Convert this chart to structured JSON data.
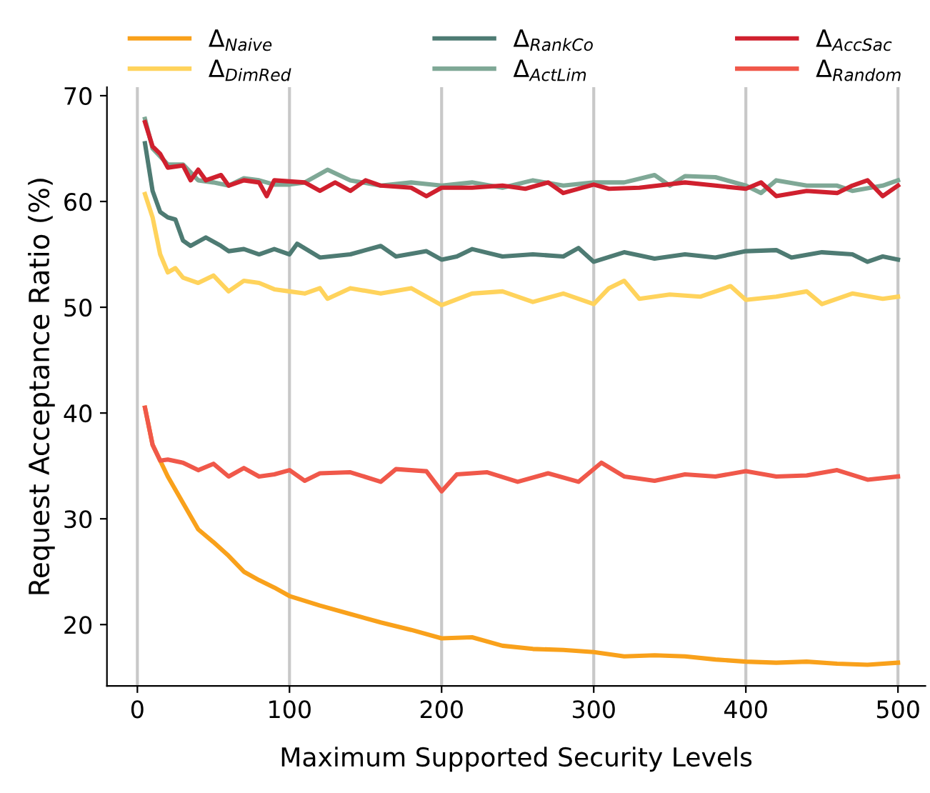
{
  "chart_data": {
    "type": "line",
    "xlabel": "Maximum Supported Security Levels",
    "ylabel": "Request Acceptance Ratio (%)",
    "xlim": [
      -20,
      518
    ],
    "ylim": [
      14.2,
      70.8
    ],
    "xticks": [
      0,
      100,
      200,
      300,
      400,
      500
    ],
    "yticks": [
      20,
      30,
      40,
      50,
      60,
      70
    ],
    "grid": "x",
    "legend": "top",
    "marker": "none",
    "line_style": "solid",
    "series": [
      {
        "name": "Δ$_{Naive}$",
        "color": "#f9a11b",
        "x": [
          5,
          10,
          20,
          30,
          40,
          50,
          60,
          70,
          80,
          90,
          100,
          120,
          140,
          160,
          180,
          200,
          220,
          240,
          260,
          280,
          300,
          320,
          340,
          360,
          380,
          400,
          420,
          440,
          460,
          480,
          500
        ],
        "values": [
          40.5,
          37,
          34,
          31.5,
          29,
          27.8,
          26.5,
          25,
          24.2,
          23.5,
          22.7,
          21.8,
          21,
          20.2,
          19.5,
          18.7,
          18.8,
          18,
          17.7,
          17.6,
          17.4,
          17,
          17.1,
          17,
          16.7,
          16.5,
          16.4,
          16.5,
          16.3,
          16.2,
          16.4
        ]
      },
      {
        "name": "Δ$_{DimRed}$",
        "color": "#ffd35c",
        "x": [
          5,
          10,
          15,
          20,
          25,
          30,
          40,
          50,
          60,
          70,
          80,
          90,
          100,
          110,
          120,
          125,
          140,
          160,
          180,
          200,
          220,
          240,
          260,
          280,
          300,
          310,
          320,
          330,
          350,
          370,
          390,
          400,
          420,
          440,
          450,
          470,
          490,
          500
        ],
        "values": [
          60.7,
          58.5,
          55,
          53.3,
          53.7,
          52.8,
          52.3,
          53,
          51.5,
          52.5,
          52.3,
          51.7,
          51.5,
          51.3,
          51.8,
          50.8,
          51.8,
          51.3,
          51.8,
          50.2,
          51.3,
          51.5,
          50.5,
          51.3,
          50.3,
          51.8,
          52.5,
          50.8,
          51.2,
          51,
          52,
          50.7,
          51,
          51.5,
          50.3,
          51.3,
          50.8,
          51
        ]
      },
      {
        "name": "Δ$_{RankCo}$",
        "color": "#4e7b73",
        "x": [
          5,
          10,
          15,
          20,
          25,
          30,
          35,
          45,
          55,
          60,
          70,
          80,
          90,
          100,
          105,
          120,
          140,
          160,
          170,
          190,
          200,
          210,
          220,
          240,
          260,
          280,
          290,
          300,
          320,
          340,
          360,
          380,
          400,
          420,
          430,
          450,
          470,
          480,
          490,
          500
        ],
        "values": [
          65.5,
          61,
          59,
          58.5,
          58.3,
          56.3,
          55.8,
          56.6,
          55.8,
          55.3,
          55.5,
          55,
          55.5,
          55,
          56,
          54.7,
          55,
          55.8,
          54.8,
          55.3,
          54.5,
          54.8,
          55.5,
          54.8,
          55,
          54.8,
          55.6,
          54.3,
          55.2,
          54.6,
          55,
          54.7,
          55.3,
          55.4,
          54.7,
          55.2,
          55,
          54.3,
          54.8,
          54.5
        ]
      },
      {
        "name": "Δ$_{ActLim}$",
        "color": "#7fa896",
        "x": [
          5,
          10,
          20,
          30,
          40,
          50,
          60,
          70,
          80,
          90,
          100,
          110,
          125,
          140,
          160,
          180,
          200,
          220,
          240,
          260,
          280,
          300,
          320,
          340,
          350,
          360,
          380,
          400,
          410,
          420,
          440,
          460,
          470,
          490,
          500
        ],
        "values": [
          67.8,
          65,
          63.5,
          63.5,
          62,
          61.8,
          61.5,
          62.2,
          62,
          61.6,
          61.6,
          61.8,
          63,
          62,
          61.5,
          61.8,
          61.5,
          61.8,
          61.3,
          62,
          61.5,
          61.8,
          61.8,
          62.5,
          61.5,
          62.4,
          62.3,
          61.5,
          60.8,
          62,
          61.5,
          61.5,
          61,
          61.5,
          62
        ]
      },
      {
        "name": "Δ$_{AccSac}$",
        "color": "#d0202e",
        "x": [
          5,
          10,
          15,
          20,
          30,
          35,
          40,
          45,
          55,
          60,
          70,
          80,
          85,
          90,
          110,
          120,
          130,
          140,
          150,
          160,
          180,
          190,
          200,
          220,
          240,
          255,
          270,
          280,
          300,
          310,
          330,
          360,
          380,
          400,
          410,
          420,
          440,
          460,
          470,
          480,
          490,
          500
        ],
        "values": [
          67.5,
          65.2,
          64.5,
          63.2,
          63.4,
          62,
          63,
          62,
          62.5,
          61.5,
          62,
          61.8,
          60.5,
          62,
          61.8,
          61,
          61.8,
          61,
          62,
          61.5,
          61.3,
          60.5,
          61.3,
          61.3,
          61.5,
          61.2,
          61.8,
          60.8,
          61.6,
          61.2,
          61.3,
          61.8,
          61.5,
          61.2,
          61.8,
          60.5,
          61,
          60.8,
          61.5,
          62,
          60.5,
          61.5
        ]
      },
      {
        "name": "Δ$_{Random}$",
        "color": "#f0584a",
        "x": [
          5,
          10,
          15,
          20,
          30,
          40,
          50,
          60,
          70,
          80,
          90,
          100,
          110,
          120,
          140,
          160,
          170,
          190,
          200,
          210,
          230,
          250,
          270,
          290,
          305,
          320,
          340,
          360,
          380,
          400,
          420,
          440,
          460,
          480,
          500
        ],
        "values": [
          40.5,
          37,
          35.5,
          35.6,
          35.3,
          34.6,
          35.2,
          34,
          34.8,
          34,
          34.2,
          34.6,
          33.6,
          34.3,
          34.4,
          33.5,
          34.7,
          34.5,
          32.6,
          34.2,
          34.4,
          33.5,
          34.3,
          33.5,
          35.3,
          34,
          33.6,
          34.2,
          34,
          34.5,
          34,
          34.1,
          34.6,
          33.7,
          34
        ]
      }
    ]
  }
}
